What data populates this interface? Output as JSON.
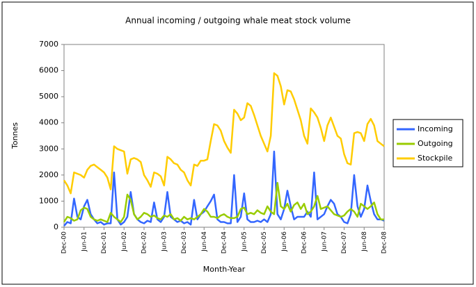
{
  "chart_data": {
    "type": "line",
    "title": "Annual incoming / outgoing whale meat stock volume",
    "x_label": "Month-Year",
    "y_label": "Tonnes",
    "categories": [
      "Dec-00",
      null,
      null,
      null,
      null,
      null,
      "Jun-01",
      null,
      null,
      null,
      null,
      null,
      "Dec-01",
      null,
      null,
      null,
      null,
      null,
      "Jun-02",
      null,
      null,
      null,
      null,
      null,
      "Dec-02",
      null,
      null,
      null,
      null,
      null,
      "Jun-03",
      null,
      null,
      null,
      null,
      null,
      "Dec-03",
      null,
      null,
      null,
      null,
      null,
      "Jun-04",
      null,
      null,
      null,
      null,
      null,
      "Dec-04",
      null,
      null,
      null,
      null,
      null,
      "Jun-05",
      null,
      null,
      null,
      null,
      null,
      "Dec-05",
      null,
      null,
      null,
      null,
      null,
      "Jun-06",
      null,
      null,
      null,
      null,
      null,
      "Dec-06",
      null,
      null,
      null,
      null,
      null,
      "Jun-07",
      null,
      null,
      null,
      null,
      null,
      "Dec-07",
      null,
      null,
      null,
      null,
      null,
      "Jun-08",
      null,
      null,
      null,
      null,
      null,
      "Dec-08"
    ],
    "series": [
      {
        "name": "Incoming",
        "color": "#3366ff",
        "values": [
          50,
          200,
          150,
          1100,
          400,
          300,
          800,
          1050,
          500,
          300,
          150,
          200,
          100,
          150,
          150,
          2100,
          300,
          100,
          200,
          400,
          1350,
          500,
          300,
          200,
          150,
          250,
          200,
          950,
          300,
          200,
          400,
          1350,
          400,
          300,
          200,
          250,
          150,
          200,
          100,
          1050,
          300,
          500,
          600,
          800,
          1000,
          1250,
          300,
          200,
          200,
          150,
          150,
          2000,
          200,
          400,
          1300,
          300,
          200,
          200,
          250,
          200,
          300,
          200,
          500,
          2900,
          500,
          300,
          700,
          1400,
          800,
          300,
          400,
          400,
          400,
          600,
          400,
          2100,
          300,
          400,
          500,
          800,
          1050,
          900,
          500,
          400,
          200,
          150,
          500,
          2000,
          800,
          400,
          700,
          1600,
          1000,
          500,
          300,
          300,
          250
        ]
      },
      {
        "name": "Outgoing",
        "color": "#99cc00",
        "values": [
          200,
          400,
          350,
          250,
          300,
          650,
          750,
          700,
          400,
          300,
          250,
          300,
          250,
          200,
          550,
          400,
          300,
          200,
          400,
          1250,
          1050,
          500,
          300,
          400,
          550,
          500,
          400,
          450,
          350,
          300,
          450,
          400,
          500,
          300,
          350,
          250,
          400,
          300,
          350,
          300,
          400,
          500,
          700,
          600,
          400,
          400,
          350,
          450,
          500,
          400,
          350,
          350,
          400,
          700,
          750,
          500,
          550,
          500,
          650,
          550,
          500,
          800,
          600,
          500,
          1700,
          800,
          700,
          900,
          600,
          850,
          950,
          700,
          900,
          500,
          600,
          800,
          1200,
          700,
          750,
          800,
          650,
          500,
          450,
          400,
          450,
          600,
          700,
          600,
          400,
          900,
          800,
          700,
          800,
          950,
          500,
          300,
          300
        ]
      },
      {
        "name": "Stockpile",
        "color": "#ffcc00",
        "values": [
          1800,
          1600,
          1300,
          2100,
          2050,
          2000,
          1900,
          2200,
          2350,
          2400,
          2300,
          2200,
          2100,
          1900,
          1450,
          3100,
          3000,
          2950,
          2900,
          2050,
          2600,
          2650,
          2600,
          2500,
          2000,
          1800,
          1550,
          2100,
          2050,
          1950,
          1600,
          2700,
          2600,
          2450,
          2400,
          2200,
          2100,
          1800,
          1600,
          2400,
          2350,
          2550,
          2550,
          2600,
          3300,
          3950,
          3900,
          3700,
          3300,
          3050,
          2850,
          4500,
          4350,
          4100,
          4200,
          4750,
          4650,
          4300,
          3900,
          3500,
          3200,
          2900,
          3500,
          5900,
          5800,
          5400,
          4700,
          5250,
          5200,
          4900,
          4500,
          4100,
          3500,
          3200,
          4550,
          4400,
          4200,
          3800,
          3300,
          3900,
          4200,
          3850,
          3500,
          3400,
          2800,
          2450,
          2400,
          3600,
          3650,
          3600,
          3300,
          3950,
          4150,
          3900,
          3300,
          3200,
          3100
        ]
      }
    ],
    "ylim": [
      0,
      7000
    ],
    "yticks": [
      0,
      1000,
      2000,
      3000,
      4000,
      5000,
      6000,
      7000
    ],
    "grid": false,
    "legend": "right"
  }
}
